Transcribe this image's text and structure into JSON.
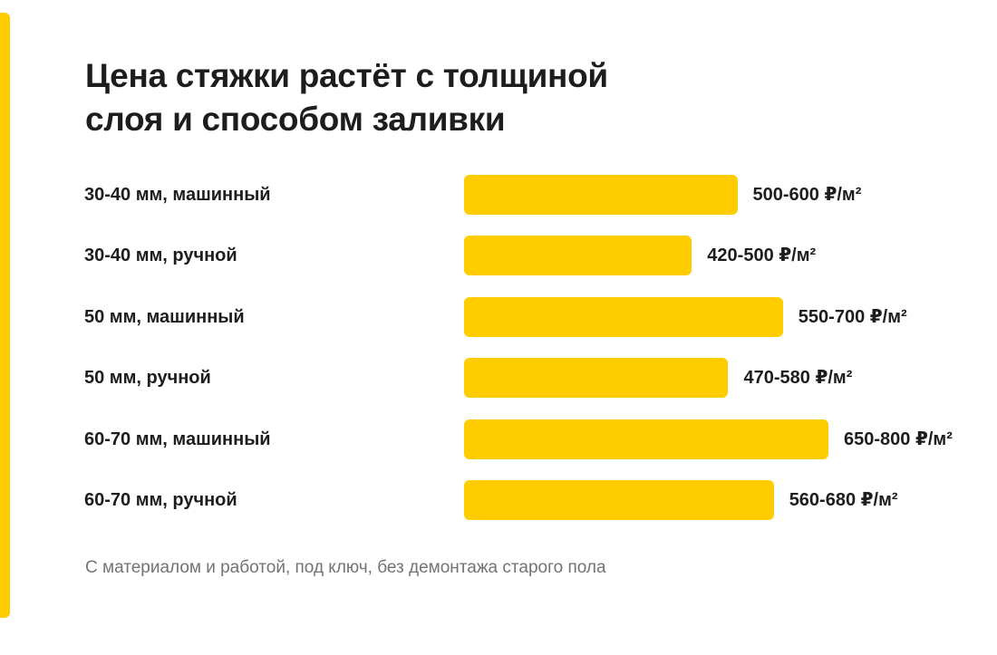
{
  "colors": {
    "accent": "#ffcc00",
    "bar": "#ffcc00",
    "text": "#1d1d1d",
    "footnote": "#737373"
  },
  "title": {
    "line1": "Цена стяжки растёт с толщиной",
    "line2": "слоя и способом заливки"
  },
  "footnote": "С материалом и работой, под ключ, без демонтажа старого пола",
  "chart_data": {
    "type": "bar",
    "orientation": "horizontal",
    "title": "Цена стяжки растёт с толщиной слоя и способом заливки",
    "unit": "₽/м²",
    "categories": [
      "30-40 мм, машинный",
      "30-40 мм, ручной",
      "50 мм, машинный",
      "50 мм, ручной",
      "60-70 мм, машинный",
      "60-70 мм, ручной"
    ],
    "ranges": [
      [
        500,
        600
      ],
      [
        420,
        500
      ],
      [
        550,
        700
      ],
      [
        470,
        580
      ],
      [
        650,
        800
      ],
      [
        560,
        680
      ]
    ],
    "values": [
      600,
      500,
      700,
      580,
      800,
      680
    ],
    "value_labels": [
      "500-600 ₽/м²",
      "420-500 ₽/м²",
      "550-700 ₽/м²",
      "470-580 ₽/м²",
      "650-800 ₽/м²",
      "560-680 ₽/м²"
    ],
    "xlim": [
      0,
      800
    ],
    "grid": false,
    "legend": "none"
  }
}
